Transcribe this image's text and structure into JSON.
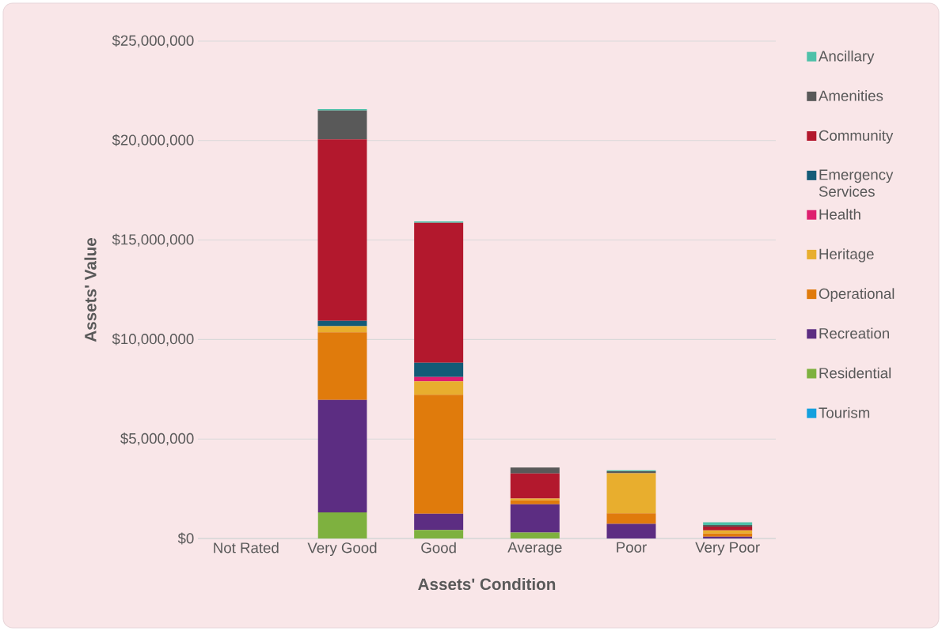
{
  "chart_data": {
    "type": "bar",
    "stacked": true,
    "xlabel": "Assets' Condition",
    "ylabel": "Assets' Value",
    "categories": [
      "Not Rated",
      "Very Good",
      "Good",
      "Average",
      "Poor",
      "Very Poor"
    ],
    "series": [
      {
        "name": "Tourism",
        "color": "#14a0de",
        "values": [
          0,
          0,
          0,
          0,
          0,
          0
        ]
      },
      {
        "name": "Residential",
        "color": "#7eb13f",
        "values": [
          0,
          1310000,
          430000,
          300000,
          0,
          0
        ]
      },
      {
        "name": "Recreation",
        "color": "#5c2d82",
        "values": [
          0,
          5650000,
          810000,
          1420000,
          730000,
          90000
        ]
      },
      {
        "name": "Operational",
        "color": "#e07b0c",
        "values": [
          0,
          3400000,
          5980000,
          200000,
          530000,
          160000
        ]
      },
      {
        "name": "Heritage",
        "color": "#e8ae2e",
        "values": [
          0,
          310000,
          680000,
          90000,
          2020000,
          160000
        ]
      },
      {
        "name": "Health",
        "color": "#de1f6f",
        "values": [
          0,
          0,
          220000,
          0,
          0,
          0
        ]
      },
      {
        "name": "Emergency Services",
        "color": "#135b77",
        "values": [
          0,
          270000,
          710000,
          0,
          0,
          0
        ]
      },
      {
        "name": "Community",
        "color": "#b3182d",
        "values": [
          0,
          9120000,
          7040000,
          1260000,
          0,
          190000
        ]
      },
      {
        "name": "Amenities",
        "color": "#595959",
        "values": [
          0,
          1450000,
          0,
          300000,
          100000,
          80000
        ]
      },
      {
        "name": "Ancillary",
        "color": "#4fc1a9",
        "values": [
          0,
          70000,
          70000,
          0,
          50000,
          130000
        ]
      }
    ],
    "ylim": [
      0,
      25000000
    ],
    "yticks": [
      {
        "value": 0,
        "label": "$0"
      },
      {
        "value": 5000000,
        "label": "$5,000,000"
      },
      {
        "value": 10000000,
        "label": "$10,000,000"
      },
      {
        "value": 15000000,
        "label": "$15,000,000"
      },
      {
        "value": 20000000,
        "label": "$20,000,000"
      },
      {
        "value": 25000000,
        "label": "$25,000,000"
      }
    ],
    "grid": "y",
    "legend": "right"
  }
}
